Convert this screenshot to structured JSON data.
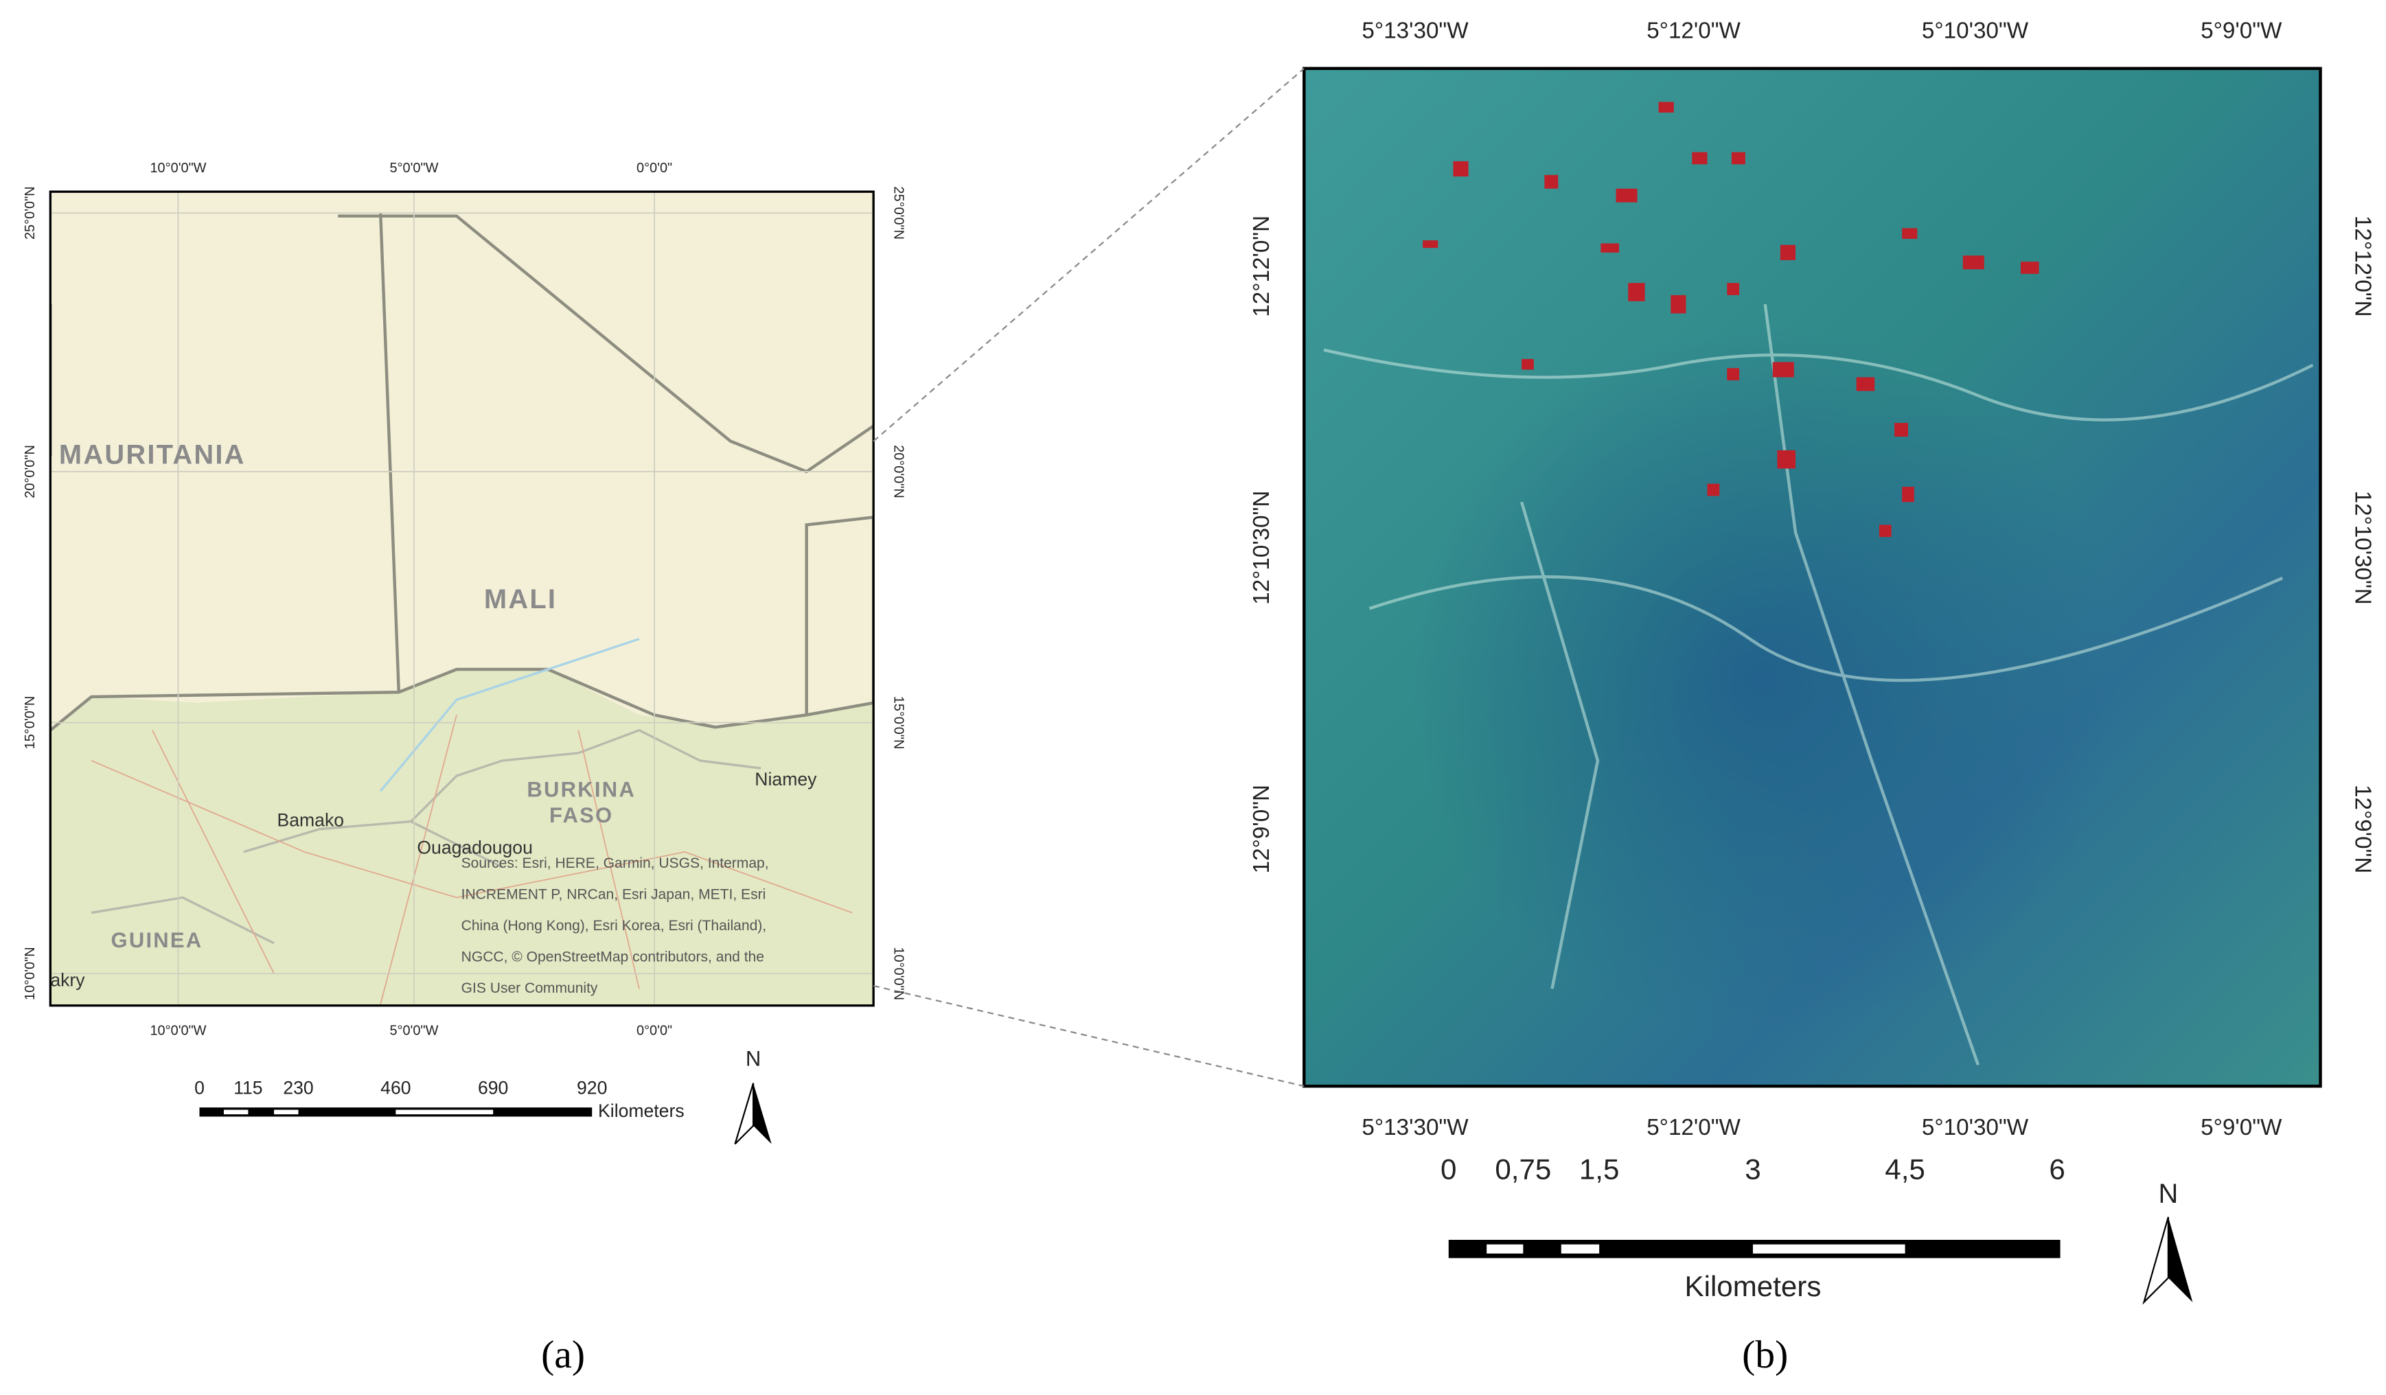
{
  "panel_a": {
    "top_labels": [
      "10°0'0\"W",
      "5°0'0\"W",
      "0°0'0\""
    ],
    "bottom_labels": [
      "10°0'0\"W",
      "5°0'0\"W",
      "0°0'0\""
    ],
    "left_labels": [
      "25°0'0\"N",
      "20°0'0\"N",
      "15°0'0\"N",
      "10°0'0\"N"
    ],
    "right_labels": [
      "25°0'0\"N",
      "20°0'0\"N",
      "15°0'0\"N",
      "10°0'0\"N"
    ],
    "countries": [
      "MAURITANIA",
      "MALI",
      "BURKINA",
      "FASO",
      "GUINEA"
    ],
    "cities": [
      "Bamako",
      "Ouagadougou",
      "Niamey",
      "akry"
    ],
    "sources": [
      "Sources: Esri, HERE, Garmin, USGS, Intermap,",
      "INCREMENT P, NRCan, Esri Japan, METI, Esri",
      "China (Hong Kong), Esri Korea, Esri (Thailand),",
      "NGCC, © OpenStreetMap contributors, and the",
      "GIS User Community"
    ],
    "scale": {
      "labels": [
        "0",
        "115",
        "230",
        "460",
        "690",
        "920"
      ],
      "unit": "Kilometers"
    },
    "north": "N",
    "caption": "(a)"
  },
  "panel_b": {
    "top_labels": [
      "5°13'30\"W",
      "5°12'0\"W",
      "5°10'30\"W",
      "5°9'0\"W"
    ],
    "bottom_labels": [
      "5°13'30\"W",
      "5°12'0\"W",
      "5°10'30\"W",
      "5°9'0\"W"
    ],
    "left_labels": [
      "12°12'0\"N",
      "12°10'30\"N",
      "12°9'0\"N"
    ],
    "right_labels": [
      "12°12'0\"N",
      "12°10'30\"N",
      "12°9'0\"N"
    ],
    "scale": {
      "labels": [
        "0",
        "0,75",
        "1,5",
        "3",
        "4,5",
        "6"
      ],
      "unit": "Kilometers"
    },
    "north": "N",
    "caption": "(b)"
  }
}
